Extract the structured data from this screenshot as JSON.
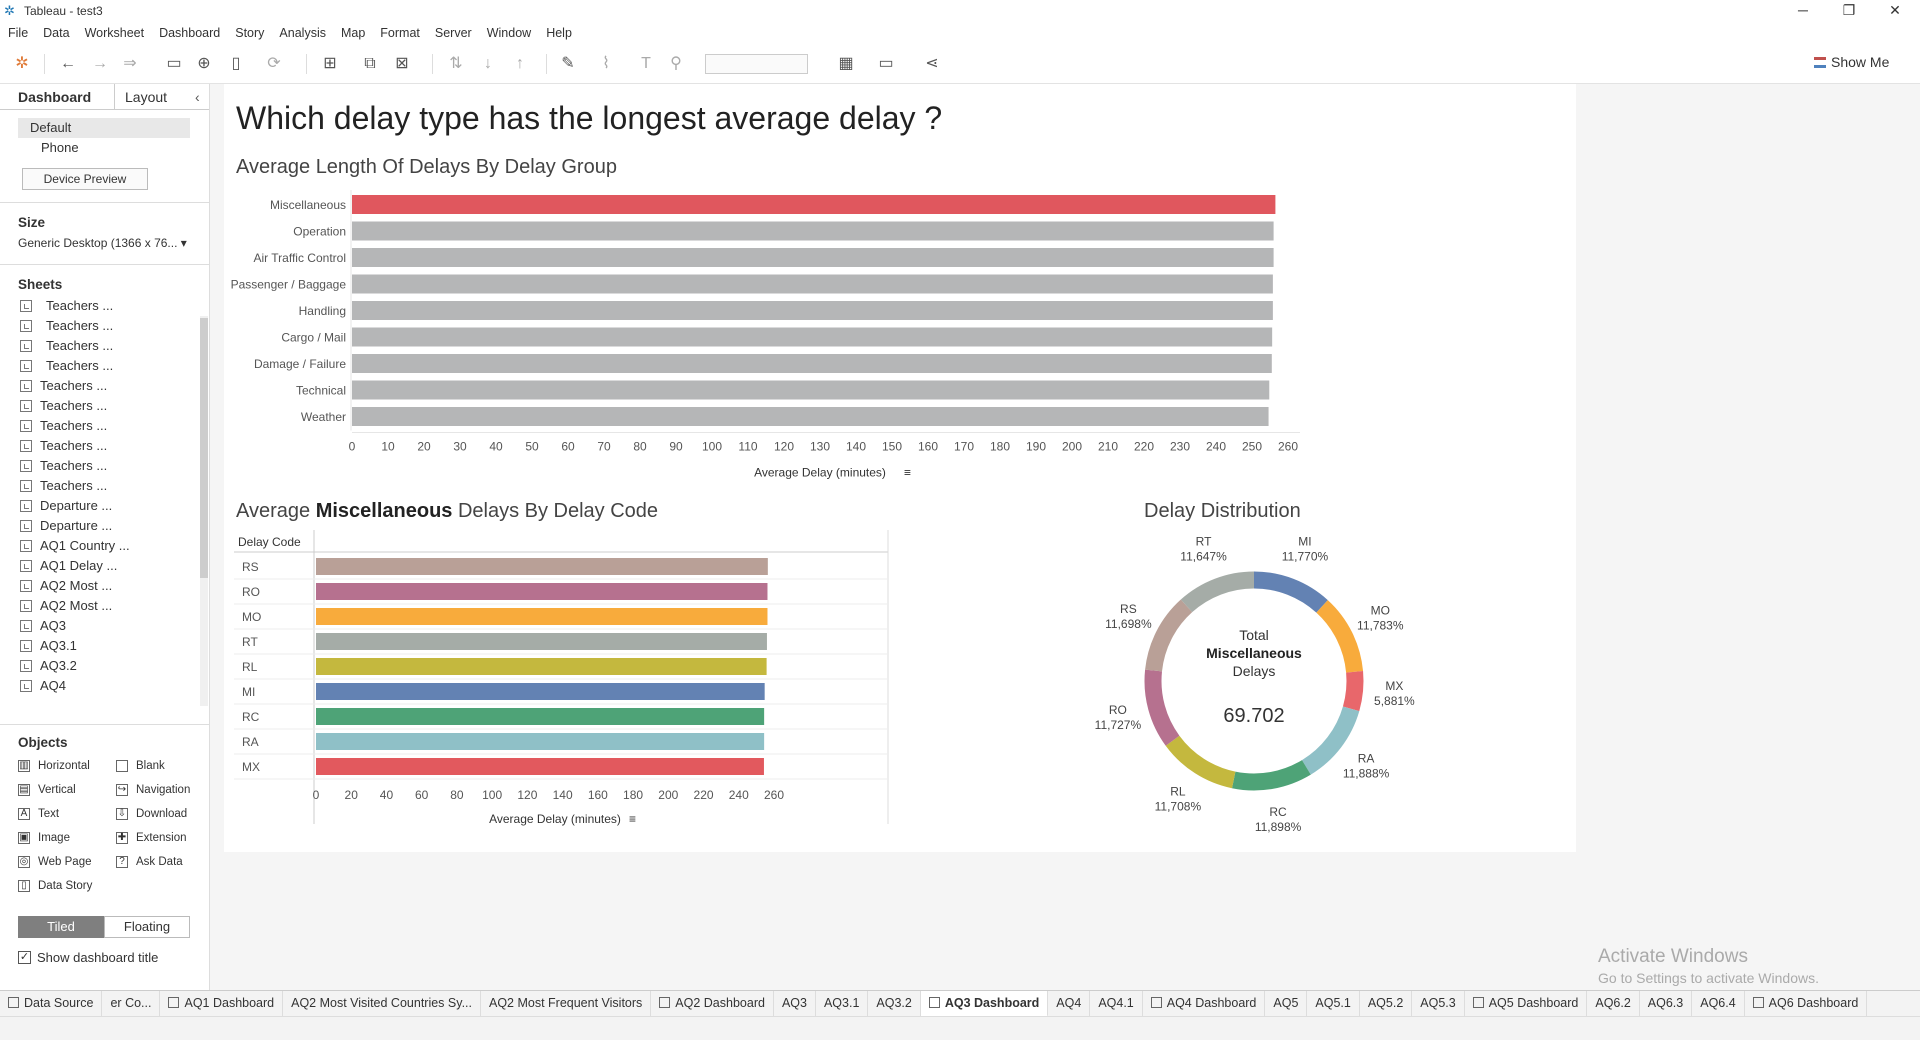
{
  "window": {
    "title": "Tableau - test3",
    "minimize": "─",
    "restore": "❐",
    "close": "✕"
  },
  "menu": [
    "File",
    "Data",
    "Worksheet",
    "Dashboard",
    "Story",
    "Analysis",
    "Map",
    "Format",
    "Server",
    "Window",
    "Help"
  ],
  "toolbar": {
    "show_me": "Show Me"
  },
  "side": {
    "tab_dashboard": "Dashboard",
    "tab_layout": "Layout",
    "devices": [
      "Default",
      "Phone"
    ],
    "device_preview": "Device Preview",
    "size_title": "Size",
    "size_value": "Generic Desktop (1366 x 76...",
    "sheets_title": "Sheets",
    "sheets": [
      "Teachers ...",
      "Teachers ...",
      "Teachers ...",
      "Teachers ...",
      "Teachers ...",
      "Teachers ...",
      "Teachers ...",
      "Teachers ...",
      "Teachers ...",
      "Teachers ...",
      "Departure ...",
      "Departure ...",
      "AQ1 Country ...",
      "AQ1 Delay ...",
      "AQ2 Most ...",
      "AQ2 Most ...",
      "AQ3",
      "AQ3.1",
      "AQ3.2",
      "AQ4"
    ],
    "objects_title": "Objects",
    "objects": [
      {
        "label": "Horizontal",
        "icon": "▥"
      },
      {
        "label": "Blank",
        "icon": ""
      },
      {
        "label": "Vertical",
        "icon": "▤"
      },
      {
        "label": "Navigation",
        "icon": "↪"
      },
      {
        "label": "Text",
        "icon": "A"
      },
      {
        "label": "Download",
        "icon": "⇩"
      },
      {
        "label": "Image",
        "icon": "▣"
      },
      {
        "label": "Extension",
        "icon": "✚"
      },
      {
        "label": "Web Page",
        "icon": "◎"
      },
      {
        "label": "Ask Data",
        "icon": "?"
      },
      {
        "label": "Data Story",
        "icon": "▯"
      }
    ],
    "tiled": "Tiled",
    "floating": "Floating",
    "show_title": "Show dashboard title"
  },
  "dashboard": {
    "title": "Which delay type has the longest average delay ?",
    "chart1_title": "Average Length Of Delays By Delay Group",
    "chart2_title_pre": "Average ",
    "chart2_title_bold": "Miscellaneous",
    "chart2_title_post": " Delays By Delay Code",
    "chart3_title": "Delay Distribution",
    "donut_center": [
      "Total",
      "Miscellaneous",
      "Delays"
    ],
    "donut_total": "69.702"
  },
  "chart_data": [
    {
      "type": "bar",
      "title": "Average Length Of Delays By Delay Group",
      "categories": [
        "Miscellaneous",
        "Operation",
        "Air Traffic Control",
        "Passenger / Baggage",
        "Handling",
        "Cargo / Mail",
        "Damage / Failure",
        "Technical",
        "Weather"
      ],
      "values": [
        256.5,
        256,
        256,
        255.8,
        255.8,
        255.6,
        255.5,
        254.8,
        254.6
      ],
      "colors": [
        "#e0575e",
        "#b5b6b7",
        "#b5b6b7",
        "#b5b6b7",
        "#b5b6b7",
        "#b5b6b7",
        "#b5b6b7",
        "#b5b6b7",
        "#b5b6b7"
      ],
      "xlabel": "Average Delay (minutes)",
      "xlim": [
        0,
        260
      ],
      "xticks": [
        0,
        10,
        20,
        30,
        40,
        50,
        60,
        70,
        80,
        90,
        100,
        110,
        120,
        130,
        140,
        150,
        160,
        170,
        180,
        190,
        200,
        210,
        220,
        230,
        240,
        250,
        260
      ]
    },
    {
      "type": "bar",
      "title": "Average Miscellaneous Delays By Delay Code",
      "header": "Delay Code",
      "categories": [
        "RS",
        "RO",
        "MO",
        "RT",
        "RL",
        "MI",
        "RC",
        "RA",
        "MX"
      ],
      "values": [
        256.5,
        256.3,
        256.3,
        256,
        255.8,
        254.7,
        254.4,
        254.4,
        254.3
      ],
      "colors": [
        "#b9a097",
        "#b6718f",
        "#f8ab3c",
        "#a5aca7",
        "#c4b83e",
        "#6382b3",
        "#4ea377",
        "#8fc0c7",
        "#e2595e"
      ],
      "xlabel": "Average Delay (minutes)",
      "xlim": [
        0,
        260
      ],
      "xticks": [
        0,
        20,
        40,
        60,
        80,
        100,
        120,
        140,
        160,
        180,
        200,
        220,
        240,
        260
      ]
    },
    {
      "type": "pie",
      "title": "Delay Distribution",
      "labels": [
        "MI",
        "MO",
        "MX",
        "RA",
        "RC",
        "RL",
        "RO",
        "RS",
        "RT"
      ],
      "values": [
        11.77,
        11.783,
        5.881,
        11.888,
        11.898,
        11.708,
        11.727,
        11.698,
        11.647
      ],
      "label_texts": [
        "11,770%",
        "11,783%",
        "5,881%",
        "11,888%",
        "11,898%",
        "11,708%",
        "11,727%",
        "11,698%",
        "11,647%"
      ],
      "colors": [
        "#6382b3",
        "#f8ab3c",
        "#e8676b",
        "#8fc0c7",
        "#4ea377",
        "#c4b83e",
        "#b6718f",
        "#b9a097",
        "#a5aca7"
      ]
    }
  ],
  "tabs": [
    "Data Source",
    "er Co...",
    "AQ1 Dashboard",
    "AQ2 Most Visited Countries Sy...",
    "AQ2 Most Frequent Visitors",
    "AQ2 Dashboard",
    "AQ3",
    "AQ3.1",
    "AQ3.2",
    "AQ3 Dashboard",
    "AQ4",
    "AQ4.1",
    "AQ4 Dashboard",
    "AQ5",
    "AQ5.1",
    "AQ5.2",
    "AQ5.3",
    "AQ5 Dashboard",
    "AQ6.2",
    "AQ6.3",
    "AQ6.4",
    "AQ6 Dashboard"
  ],
  "active_tab": "AQ3 Dashboard",
  "watermark": {
    "line1": "Activate Windows",
    "line2": "Go to Settings to activate Windows."
  }
}
